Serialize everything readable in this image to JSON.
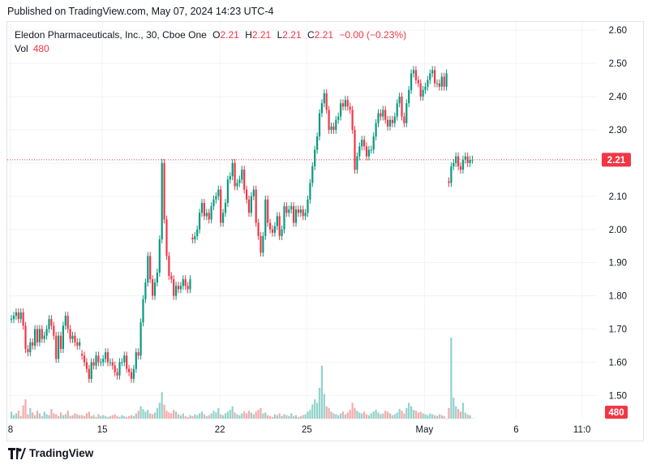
{
  "header": {
    "published": "Published on TradingView.com, May 07, 2024 14:23 UTC-4"
  },
  "legend": {
    "symbol": "Eledon Pharmaceuticals, Inc., 30, Cboe One",
    "o_label": "O",
    "o": "2.21",
    "h_label": "H",
    "h": "2.21",
    "l_label": "L",
    "l": "2.21",
    "c_label": "C",
    "c": "2.21",
    "change": "−0.00 (−0.23%)",
    "vol_label": "Vol",
    "vol": "480"
  },
  "price_tag": "2.21",
  "volume_tag": "480",
  "footer": {
    "brand": "TradingView"
  },
  "colors": {
    "up": "#089981",
    "down": "#f23645",
    "up_vol": "#92d2cc",
    "down_vol": "#f7a9a7",
    "grid": "#f0f3fa"
  },
  "chart_data": {
    "type": "candlestick",
    "y_ticks": [
      1.5,
      1.6,
      1.7,
      1.8,
      1.9,
      2.0,
      2.1,
      2.2,
      2.3,
      2.4,
      2.5,
      2.6
    ],
    "y_tick_labels": [
      "1.50",
      "1.60",
      "1.70",
      "1.80",
      "1.90",
      "2.00",
      "2.10",
      "2.20",
      "2.30",
      "2.40",
      "2.50",
      "2.60"
    ],
    "ylim": [
      1.43,
      2.625
    ],
    "last_price": 2.21,
    "x_ticks": [
      {
        "label": "8",
        "bar": 0
      },
      {
        "label": "15",
        "bar": 39
      },
      {
        "label": "22",
        "bar": 89
      },
      {
        "label": "25",
        "bar": 126
      },
      {
        "label": "May",
        "bar": 176
      },
      {
        "label": "6",
        "bar": 215
      },
      {
        "label": "11:0",
        "bar": 243
      }
    ],
    "segments": [
      {
        "closes": [
          1.73,
          1.74,
          1.75,
          1.73,
          1.75,
          1.71,
          1.64,
          1.63,
          1.66,
          1.65,
          1.7,
          1.66,
          1.7,
          1.67,
          1.68,
          1.7,
          1.73,
          1.71,
          1.68,
          1.61,
          1.68,
          1.64,
          1.71,
          1.74,
          1.7,
          1.67,
          1.68,
          1.66,
          1.65,
          1.66
        ],
        "volumes": [
          8000,
          4000,
          6000,
          9000,
          3000,
          15000,
          22000,
          5000,
          12000,
          7000,
          4000,
          9000,
          6000,
          3000,
          8000,
          5000,
          4000,
          11000,
          6000,
          5000,
          3000,
          7000,
          4000,
          5000,
          9000,
          3000,
          4000,
          6000,
          5000,
          4000
        ]
      },
      {
        "closes": [
          1.62,
          1.6,
          1.58,
          1.55,
          1.6,
          1.59,
          1.62,
          1.6,
          1.6,
          1.61,
          1.63,
          1.6,
          1.6,
          1.59,
          1.57,
          1.56,
          1.6,
          1.6,
          1.62,
          1.58,
          1.57,
          1.55,
          1.58,
          1.63,
          1.62,
          1.72,
          1.79,
          1.84,
          1.92,
          1.85,
          1.8,
          1.84,
          1.87,
          1.97,
          2.2,
          2.03,
          1.92,
          1.86,
          1.85,
          1.8,
          1.83,
          1.82,
          1.83,
          1.85,
          1.83,
          1.82,
          1.85
        ],
        "volumes": [
          4000,
          3000,
          6000,
          8000,
          3000,
          4000,
          2000,
          5000,
          3000,
          4000,
          3000,
          2000,
          3000,
          4000,
          5000,
          3000,
          2000,
          4000,
          3000,
          2000,
          3000,
          4000,
          3000,
          6000,
          9000,
          14000,
          11000,
          8000,
          10000,
          6000,
          5000,
          7000,
          12000,
          18000,
          30000,
          16000,
          9000,
          7000,
          6000,
          10000,
          8000,
          5000,
          4000,
          6000,
          3000,
          2000,
          4000
        ]
      },
      {
        "closes": [
          1.97,
          1.98,
          2.0,
          2.05,
          2.08,
          2.04,
          2.05,
          2.03,
          2.07,
          2.09,
          2.1,
          2.12,
          2.02,
          2.05,
          2.08,
          2.15,
          2.16,
          2.2,
          2.13,
          2.14,
          2.15,
          2.18,
          2.12,
          2.09,
          2.05,
          2.1,
          2.12,
          2.02,
          1.98,
          1.93,
          1.98,
          2.09,
          2.02,
          2.0,
          1.99,
          2.01,
          2.04,
          1.98,
          2.0,
          2.07,
          2.05,
          2.06,
          2.07,
          2.02,
          2.06,
          2.05,
          2.06,
          2.04,
          2.05,
          2.09,
          2.14,
          2.19,
          2.24,
          2.28,
          2.35,
          2.38,
          2.41,
          2.36,
          2.3,
          2.31,
          2.3,
          2.33,
          2.34,
          2.38,
          2.37,
          2.39,
          2.37,
          2.36,
          2.3,
          2.18,
          2.22,
          2.25,
          2.27,
          2.25,
          2.22,
          2.24,
          2.24,
          2.28,
          2.32,
          2.35,
          2.34,
          2.36,
          2.33,
          2.31,
          2.33,
          2.32,
          2.34,
          2.38,
          2.4,
          2.34,
          2.32,
          2.38,
          2.42,
          2.47,
          2.48,
          2.45,
          2.44,
          2.4,
          2.42,
          2.43,
          2.45,
          2.47,
          2.48,
          2.44,
          2.44,
          2.43,
          2.46,
          2.43,
          2.47
        ],
        "volumes": [
          3000,
          5000,
          4000,
          6000,
          8000,
          5000,
          3000,
          4000,
          6000,
          9000,
          7000,
          12000,
          5000,
          4000,
          6000,
          8000,
          10000,
          14000,
          7000,
          5000,
          4000,
          6000,
          8000,
          6000,
          9000,
          7000,
          5000,
          8000,
          10000,
          12000,
          6000,
          7000,
          4000,
          3000,
          2000,
          5000,
          4000,
          6000,
          3000,
          5000,
          4000,
          3000,
          6000,
          3000,
          4000,
          2000,
          3000,
          4000,
          5000,
          8000,
          10000,
          16000,
          22000,
          18000,
          35000,
          60000,
          28000,
          14000,
          12000,
          8000,
          6000,
          5000,
          4000,
          6000,
          8000,
          5000,
          7000,
          10000,
          18000,
          12000,
          9000,
          7000,
          6000,
          8000,
          5000,
          4000,
          6000,
          8000,
          10000,
          7000,
          5000,
          6000,
          9000,
          8000,
          6000,
          4000,
          5000,
          7000,
          11000,
          9000,
          6000,
          12000,
          18000,
          14000,
          10000,
          9000,
          7000,
          8000,
          6000,
          5000,
          4000,
          6000,
          5000,
          4000,
          3000,
          5000,
          4000,
          3000
        ]
      },
      {
        "closes": [
          2.14,
          2.19,
          2.2,
          2.22,
          2.19,
          2.18,
          2.21,
          2.22,
          2.2,
          2.21,
          2.21
        ],
        "volumes": [
          12000,
          92000,
          24000,
          14000,
          11000,
          8000,
          18000,
          7000,
          5000,
          4000,
          480
        ]
      }
    ]
  }
}
